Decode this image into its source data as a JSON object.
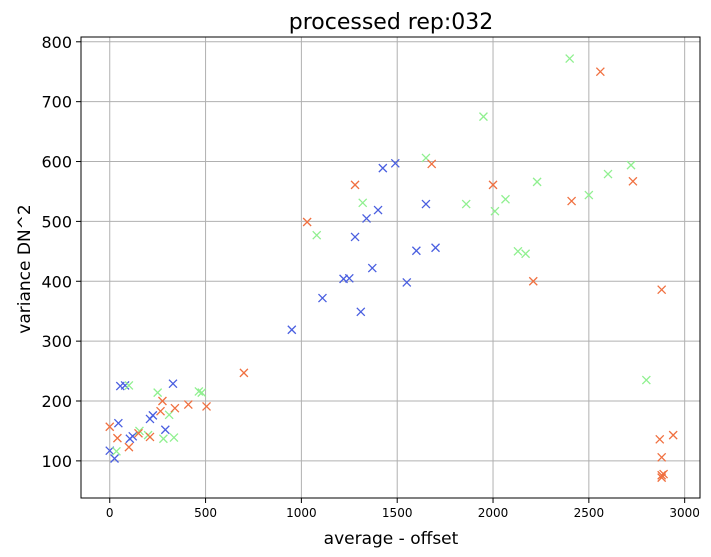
{
  "chart_data": {
    "type": "scatter",
    "title": "processed rep:032",
    "xlabel": "average - offset",
    "ylabel": "variance DN^2",
    "xlim": [
      -150,
      3080
    ],
    "ylim": [
      38,
      808
    ],
    "xticks": [
      0,
      500,
      1000,
      1500,
      2000,
      2500,
      3000
    ],
    "yticks": [
      100,
      200,
      300,
      400,
      500,
      600,
      700,
      800
    ],
    "grid": true,
    "marker": "x",
    "series": [
      {
        "color": "#4a5fe0",
        "points": [
          [
            0,
            117
          ],
          [
            25,
            104
          ],
          [
            45,
            163
          ],
          [
            55,
            225
          ],
          [
            80,
            226
          ],
          [
            105,
            137
          ],
          [
            120,
            141
          ],
          [
            210,
            170
          ],
          [
            225,
            176
          ],
          [
            290,
            152
          ],
          [
            330,
            229
          ],
          [
            950,
            319
          ],
          [
            1110,
            372
          ],
          [
            1220,
            404
          ],
          [
            1250,
            405
          ],
          [
            1280,
            474
          ],
          [
            1310,
            349
          ],
          [
            1340,
            505
          ],
          [
            1370,
            422
          ],
          [
            1400,
            519
          ],
          [
            1425,
            589
          ],
          [
            1490,
            597
          ],
          [
            1550,
            398
          ],
          [
            1600,
            451
          ],
          [
            1650,
            529
          ],
          [
            1700,
            456
          ]
        ]
      },
      {
        "color": "#90f090",
        "points": [
          [
            35,
            116
          ],
          [
            100,
            226
          ],
          [
            155,
            150
          ],
          [
            200,
            143
          ],
          [
            250,
            214
          ],
          [
            280,
            137
          ],
          [
            310,
            177
          ],
          [
            335,
            139
          ],
          [
            465,
            216
          ],
          [
            480,
            214
          ],
          [
            1080,
            477
          ],
          [
            1320,
            531
          ],
          [
            1650,
            606
          ],
          [
            1860,
            529
          ],
          [
            1950,
            675
          ],
          [
            2010,
            517
          ],
          [
            2065,
            537
          ],
          [
            2130,
            450
          ],
          [
            2170,
            446
          ],
          [
            2230,
            566
          ],
          [
            2400,
            772
          ],
          [
            2500,
            544
          ],
          [
            2600,
            579
          ],
          [
            2720,
            594
          ],
          [
            2800,
            235
          ]
        ]
      },
      {
        "color": "#f07040",
        "points": [
          [
            0,
            157
          ],
          [
            40,
            138
          ],
          [
            100,
            123
          ],
          [
            150,
            146
          ],
          [
            210,
            140
          ],
          [
            265,
            183
          ],
          [
            275,
            200
          ],
          [
            340,
            188
          ],
          [
            410,
            194
          ],
          [
            505,
            191
          ],
          [
            700,
            247
          ],
          [
            1030,
            499
          ],
          [
            1280,
            561
          ],
          [
            1680,
            596
          ],
          [
            2000,
            561
          ],
          [
            2210,
            400
          ],
          [
            2410,
            534
          ],
          [
            2560,
            750
          ],
          [
            2730,
            567
          ],
          [
            2870,
            136
          ],
          [
            2880,
            386
          ],
          [
            2880,
            106
          ],
          [
            2880,
            76
          ],
          [
            2880,
            72
          ],
          [
            2890,
            78
          ],
          [
            2940,
            143
          ]
        ]
      }
    ]
  }
}
